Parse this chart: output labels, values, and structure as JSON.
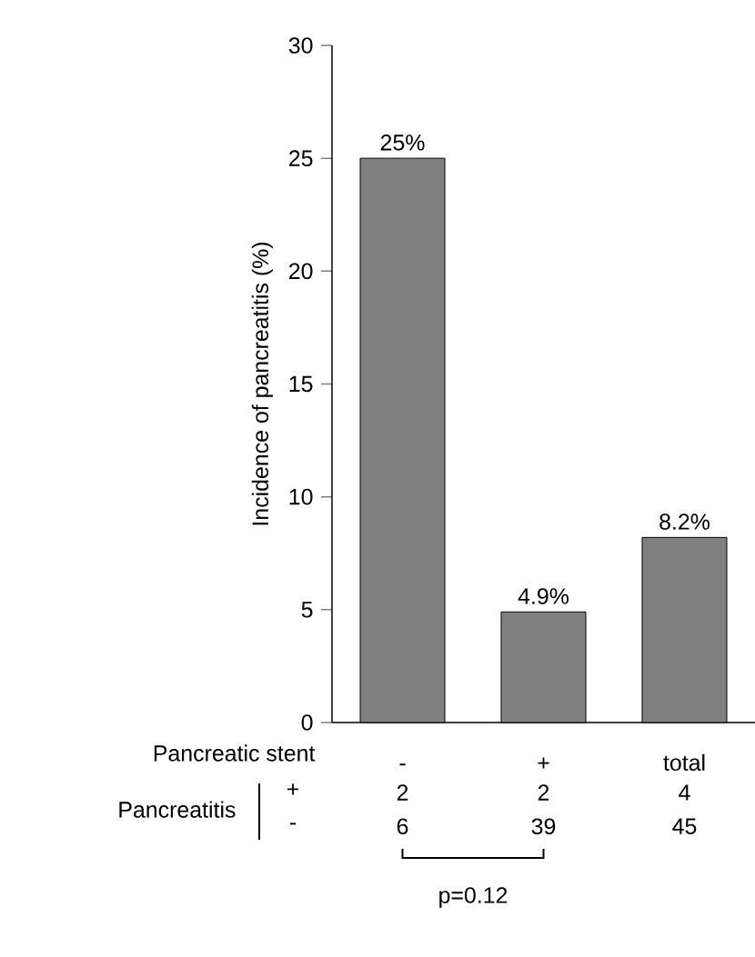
{
  "chart_data": {
    "type": "bar",
    "ylabel": "Incidence of  pancreatitis (%)",
    "categories": [
      "-",
      "+",
      "total"
    ],
    "values": [
      25,
      4.9,
      8.2
    ],
    "value_labels": [
      "25%",
      "4.9%",
      "8.2%"
    ],
    "color": "#808080",
    "ylim": [
      0,
      30
    ],
    "yticks": [
      0,
      5,
      10,
      15,
      20,
      25,
      30
    ],
    "annotations": [
      "Pancreatic stent",
      "Pancreatitis",
      "+",
      "-",
      "2",
      "2",
      "4",
      "6",
      "39",
      "45",
      "p=0.12"
    ]
  }
}
